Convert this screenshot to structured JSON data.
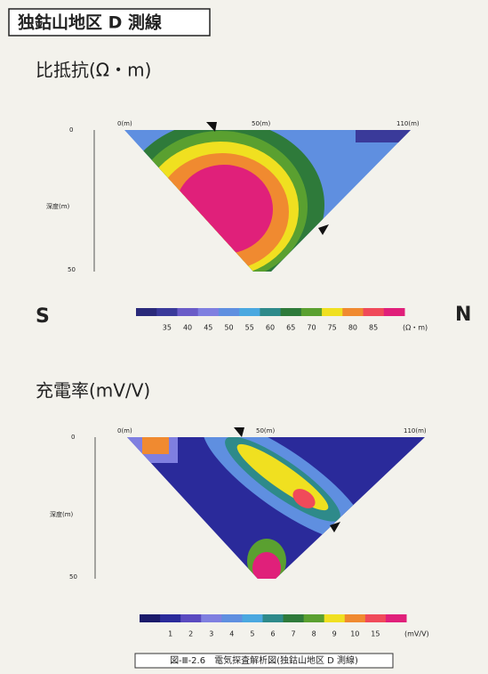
{
  "header": {
    "title": "独鈷山地区 D 測線"
  },
  "directions": {
    "left": "S",
    "right": "N"
  },
  "panels": [
    {
      "title": "比抵抗(Ω・m)",
      "x_labels": [
        "0(m)",
        "50(m)",
        "110(m)"
      ],
      "depth_label": "深度(m)",
      "depth_ticks": [
        "0",
        "50"
      ],
      "colorbar": {
        "colors": [
          "#2a2a7a",
          "#3a3a9a",
          "#6a5cc8",
          "#7f7fe0",
          "#5f8fe0",
          "#4aa8e0",
          "#2e8a8a",
          "#2e7a3a",
          "#5aa030",
          "#f0e020",
          "#f08a30",
          "#f04a5a",
          "#e0207a"
        ],
        "labels": [
          "35",
          "40",
          "45",
          "50",
          "55",
          "60",
          "65",
          "70",
          "75",
          "80",
          "85"
        ],
        "unit": "(Ω・m)"
      }
    },
    {
      "title": "充電率(mV/V)",
      "x_labels": [
        "0(m)",
        "50(m)",
        "110(m)"
      ],
      "depth_label": "深度(m)",
      "depth_ticks": [
        "0",
        "50"
      ],
      "colorbar": {
        "colors": [
          "#1a1a6a",
          "#2a2a9a",
          "#5a4ac0",
          "#7f7fe0",
          "#5f8fe0",
          "#4aa8e0",
          "#2e8a8a",
          "#2e7a3a",
          "#5aa030",
          "#f0e020",
          "#f08a30",
          "#f04a5a",
          "#e0207a"
        ],
        "labels": [
          "1",
          "2",
          "3",
          "4",
          "5",
          "6",
          "7",
          "8",
          "9",
          "10",
          "15"
        ],
        "unit": "(mV/V)"
      }
    }
  ],
  "caption": "図-Ⅲ-2.6　電気探査解析図(独鈷山地区 D 測線)"
}
